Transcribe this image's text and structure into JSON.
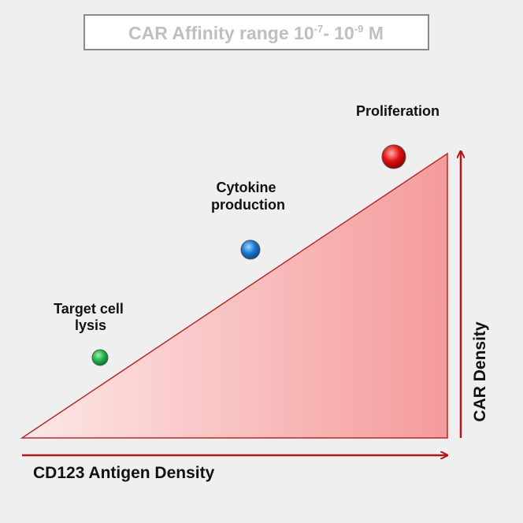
{
  "title": [
    "CAR Affinity range 10",
    "-7",
    "- 10",
    "-9",
    " M"
  ],
  "labels": [
    {
      "lines": [
        "Target cell",
        "lysis"
      ]
    },
    {
      "lines": [
        "Cytokine",
        "production"
      ]
    },
    {
      "lines": [
        "Proliferation"
      ]
    }
  ],
  "x_axis": "CD123 Antigen Density",
  "y_axis": "CAR Density"
}
